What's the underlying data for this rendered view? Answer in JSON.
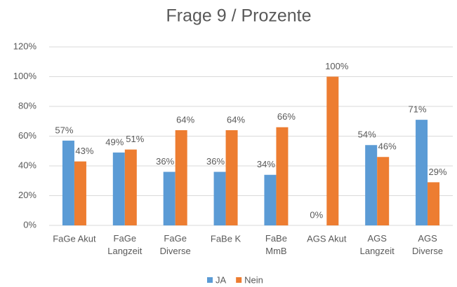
{
  "chart_data": {
    "type": "bar",
    "title": "Frage 9 / Prozente",
    "categories": [
      "FaGe Akut",
      "FaGe\nLangzeit",
      "FaGe\nDiverse",
      "FaBe K",
      "FaBe\nMmB",
      "AGS Akut",
      "AGS\nLangzeit",
      "AGS\nDiverse"
    ],
    "series": [
      {
        "name": "JA",
        "color": "#5b9bd5",
        "values": [
          57,
          49,
          36,
          36,
          34,
          0,
          54,
          71
        ],
        "value_labels": [
          "57%",
          "49%",
          "36%",
          "36%",
          "34%",
          "0%",
          "54%",
          "71%"
        ]
      },
      {
        "name": "Nein",
        "color": "#ed7d31",
        "values": [
          43,
          51,
          64,
          64,
          66,
          100,
          46,
          29
        ],
        "value_labels": [
          "43%",
          "51%",
          "64%",
          "64%",
          "66%",
          "100%",
          "46%",
          "29%"
        ]
      }
    ],
    "ylim": [
      0,
      120
    ],
    "yticks": [
      {
        "value": 0,
        "label": "0%"
      },
      {
        "value": 20,
        "label": "20%"
      },
      {
        "value": 40,
        "label": "40%"
      },
      {
        "value": 60,
        "label": "60%"
      },
      {
        "value": 80,
        "label": "80%"
      },
      {
        "value": 100,
        "label": "100%"
      },
      {
        "value": 120,
        "label": "120%"
      }
    ],
    "grid": true,
    "legend": "bottom"
  }
}
